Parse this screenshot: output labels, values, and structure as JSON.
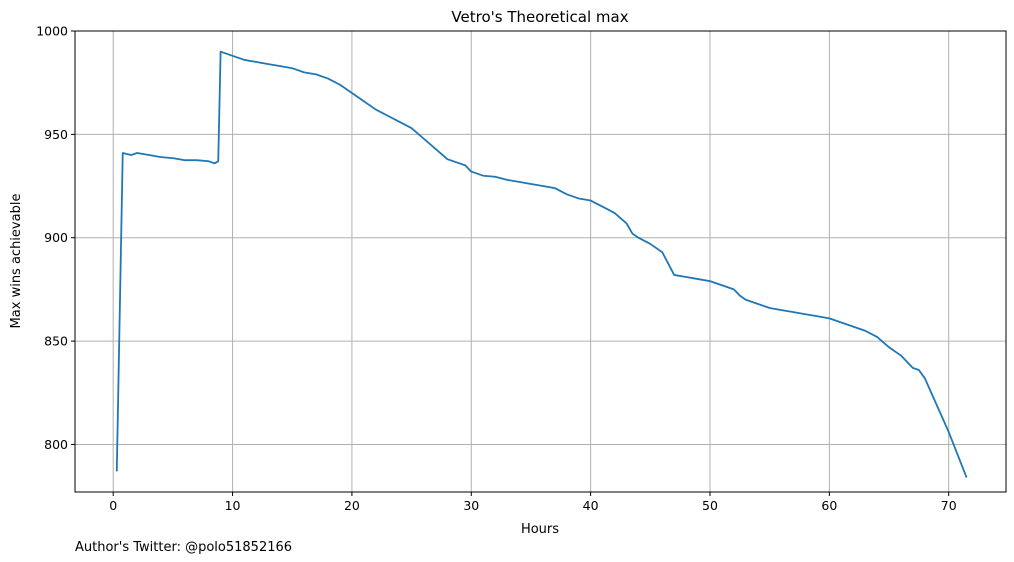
{
  "chart_data": {
    "type": "line",
    "title": "Vetro's Theoretical max",
    "xlabel": "Hours",
    "ylabel": "Max wins achievable",
    "footnote": "Author's Twitter: @polo51852166",
    "xlim": [
      -3.2,
      74.8
    ],
    "ylim": [
      777,
      1000
    ],
    "xticks": [
      0,
      10,
      20,
      30,
      40,
      50,
      60,
      70
    ],
    "yticks": [
      800,
      850,
      900,
      950,
      1000
    ],
    "grid": true,
    "line_color": "#1f77b4",
    "series": [
      {
        "x": [
          0.3,
          0.8,
          1.5,
          2,
          3,
          4,
          5,
          6,
          7,
          8,
          8.5,
          8.8,
          9.0,
          10,
          11,
          12,
          13,
          14,
          15,
          16,
          17,
          18,
          19,
          20,
          21,
          22,
          23,
          24,
          25,
          26,
          27,
          28,
          29,
          29.5,
          30,
          31,
          32,
          33,
          34,
          35,
          36,
          37,
          38,
          39,
          40,
          41,
          42,
          43,
          43.5,
          44,
          45,
          46,
          47,
          48,
          49,
          50,
          51,
          52,
          52.5,
          53,
          54,
          55,
          56,
          57,
          58,
          59,
          60,
          61,
          62,
          63,
          64,
          65,
          66,
          67,
          67.5,
          68,
          69,
          70,
          71.5
        ],
        "y": [
          787,
          941,
          940,
          941,
          940,
          939,
          938.5,
          937.5,
          937.5,
          937,
          936,
          937,
          990,
          988,
          986,
          985,
          984,
          983,
          982,
          980,
          979,
          977,
          974,
          970,
          966,
          962,
          959,
          956,
          953,
          948,
          943,
          938,
          936,
          935,
          932,
          930,
          929.5,
          928,
          927,
          926,
          925,
          924,
          921,
          919,
          918,
          915,
          912,
          907,
          902,
          900,
          897,
          893,
          882,
          881,
          880,
          879,
          877,
          875,
          872,
          870,
          868,
          866,
          865,
          864,
          863,
          862,
          861,
          859,
          857,
          855,
          852,
          847,
          843,
          837,
          836,
          832,
          819,
          806,
          784
        ]
      }
    ]
  }
}
